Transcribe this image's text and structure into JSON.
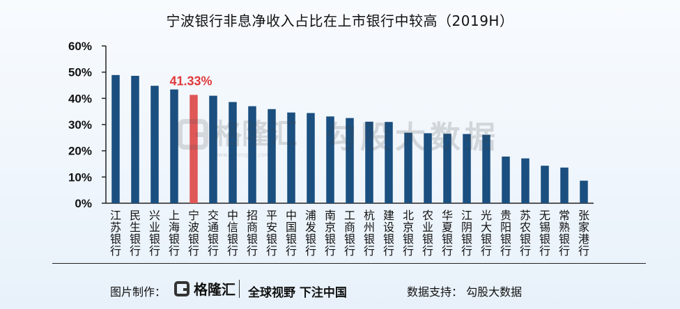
{
  "chart_data": {
    "type": "bar",
    "title": "宁波银行非息净收入占比在上市银行中较高（2019H）",
    "categories": [
      "江苏银行",
      "民生银行",
      "兴业银行",
      "上海银行",
      "宁波银行",
      "交通银行",
      "中信银行",
      "招商银行",
      "平安银行",
      "中国银行",
      "浦发银行",
      "南京银行",
      "工商银行",
      "杭州银行",
      "建设银行",
      "北京银行",
      "农业银行",
      "华夏银行",
      "江阴银行",
      "光大银行",
      "贵阳银行",
      "苏农银行",
      "无锡银行",
      "常熟银行",
      "张家港行"
    ],
    "values": [
      48.9,
      48.6,
      44.8,
      43.4,
      41.33,
      41.0,
      38.6,
      37.0,
      35.9,
      34.6,
      34.4,
      33.1,
      32.5,
      31.1,
      31.0,
      26.9,
      26.7,
      26.5,
      26.4,
      26.1,
      17.8,
      17.1,
      14.3,
      13.6,
      8.6
    ],
    "ylim": [
      0,
      60
    ],
    "yticks": [
      "0%",
      "10%",
      "20%",
      "30%",
      "40%",
      "50%",
      "60%"
    ],
    "highlight_index": 4,
    "highlight_label": "41.33%",
    "bar_color": "#1a4f7f",
    "highlight_color": "#df5757",
    "grid": false
  },
  "watermark": {
    "brand": "格隆汇",
    "url": "www.gelonghui.com",
    "source": "勾股大数据"
  },
  "footer": {
    "made_by_label": "图片制作：",
    "brand": "格隆汇",
    "slogan": "全球视野 下注中国",
    "data_support": "数据支持：  勾股大数据"
  }
}
